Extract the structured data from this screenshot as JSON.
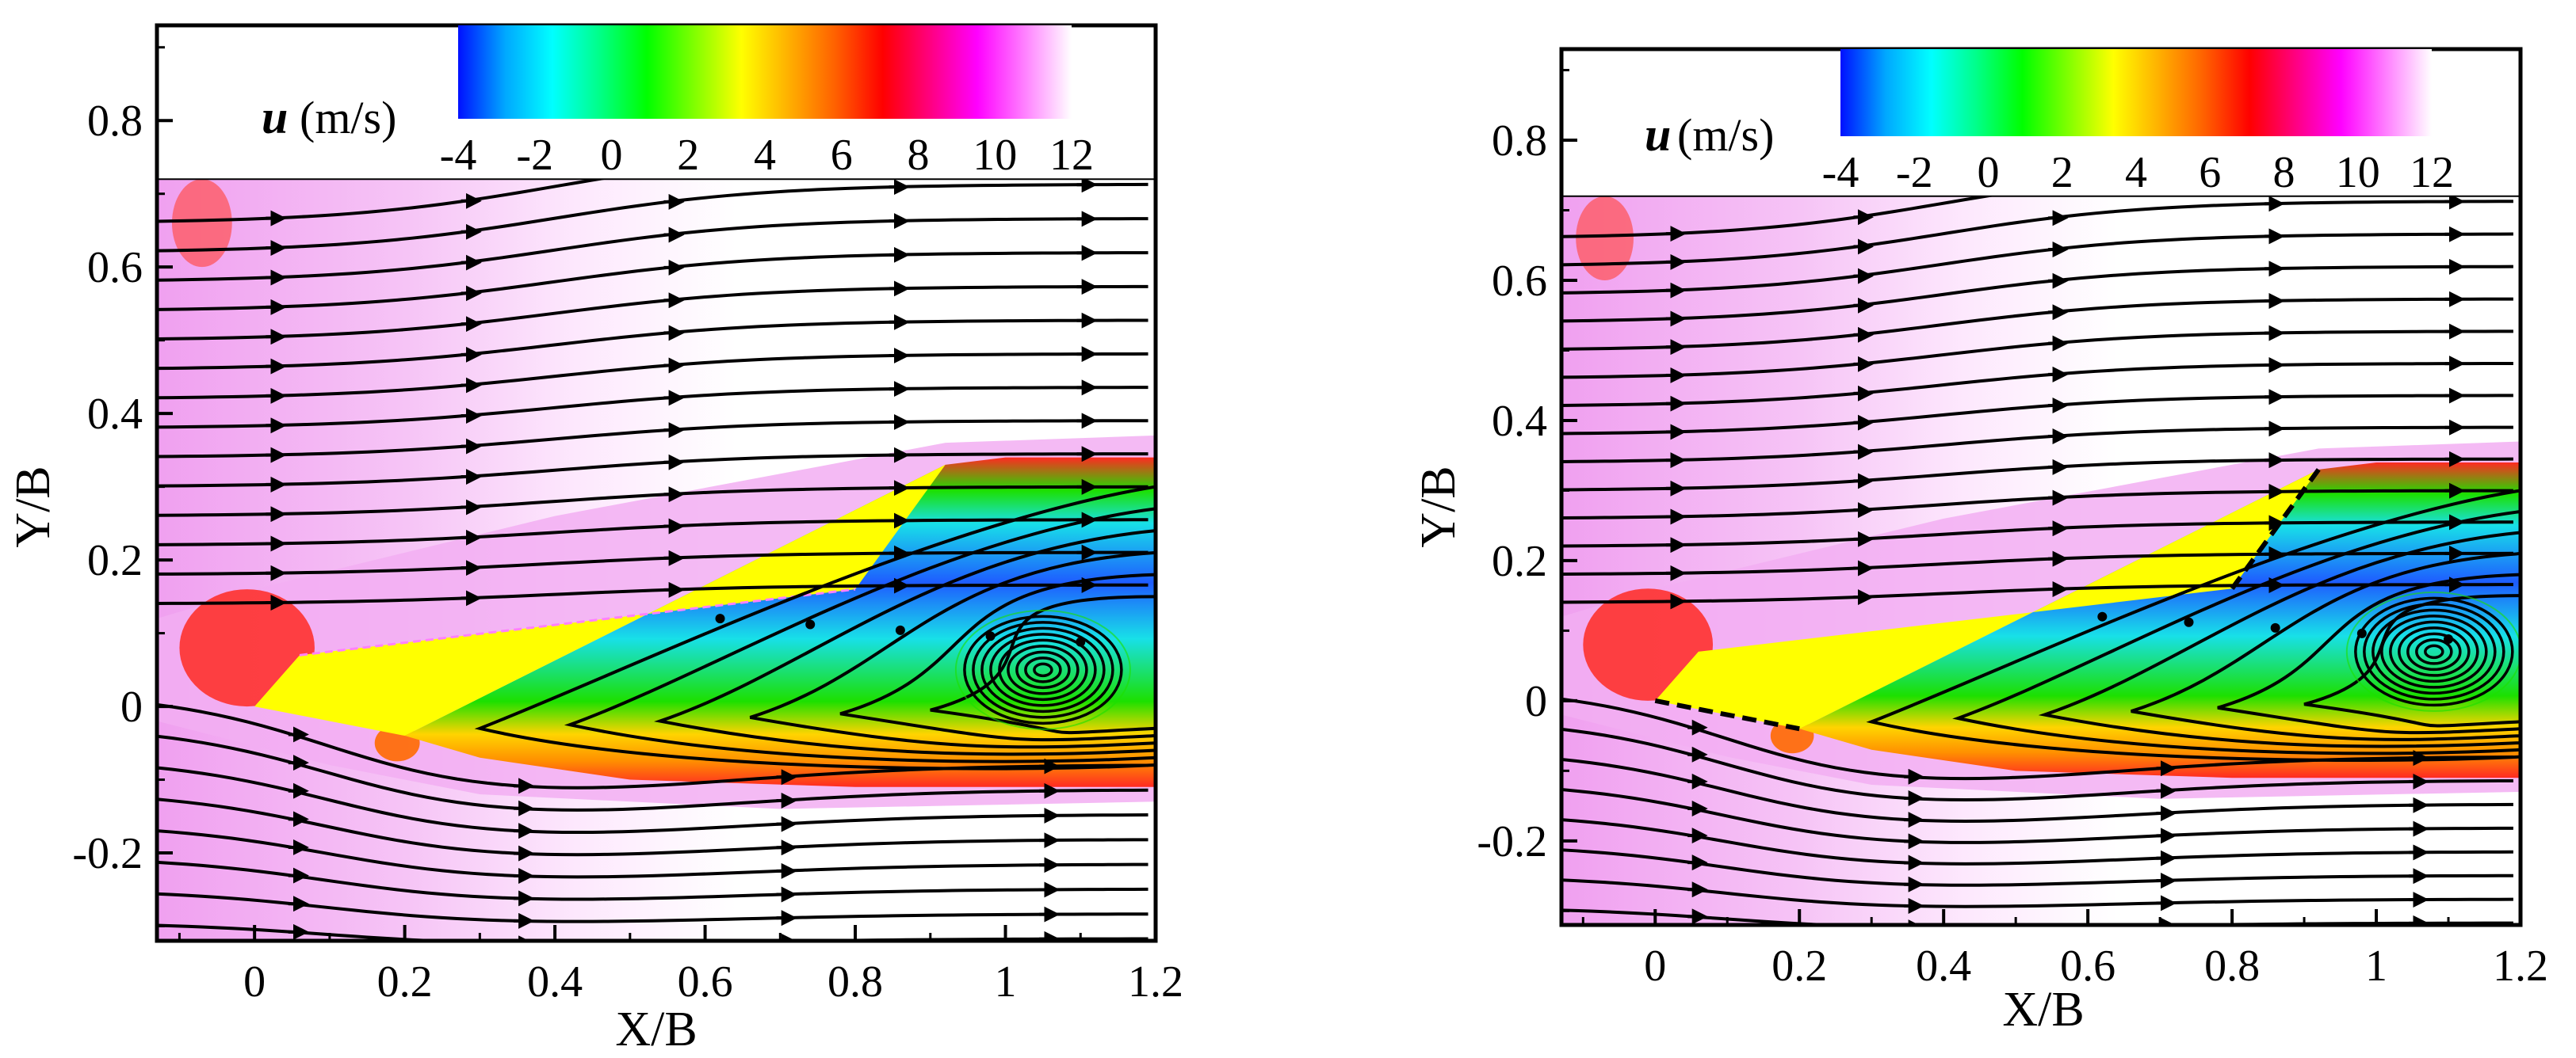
{
  "chart_data": [
    {
      "type": "heatmap",
      "panel": "left",
      "title": "",
      "xlabel": "X/B",
      "ylabel": "Y/B",
      "xlim": [
        -0.13,
        1.2
      ],
      "ylim": [
        -0.32,
        0.93
      ],
      "x_ticks": [
        "0",
        "0.2",
        "0.4",
        "0.6",
        "0.8",
        "1",
        "1.2"
      ],
      "x_tick_values": [
        0,
        0.2,
        0.4,
        0.6,
        0.8,
        1.0,
        1.2
      ],
      "y_ticks": [
        "-0.2",
        "0",
        "0.2",
        "0.4",
        "0.6",
        "0.8"
      ],
      "y_tick_values": [
        -0.2,
        0,
        0.2,
        0.4,
        0.6,
        0.8
      ],
      "colorbar": {
        "variable": "u",
        "unit": "(m/s)",
        "range": [
          -4,
          12
        ],
        "tick_values": [
          -4,
          -2,
          0,
          2,
          4,
          6,
          8,
          10,
          12
        ],
        "tick_labels": [
          "-4",
          "-2",
          "0",
          "2",
          "4",
          "6",
          "8",
          "10",
          "12"
        ]
      },
      "body_polygon": [
        [
          0,
          0
        ],
        [
          0.06,
          0.07
        ],
        [
          0.8,
          0.16
        ],
        [
          0.92,
          0.33
        ],
        [
          0.2,
          -0.04
        ]
      ],
      "vortex_center": [
        1.05,
        0.05
      ],
      "separation_line_style": "thin",
      "streamlines": "black with arrowheads",
      "domain_top": 0.72
    },
    {
      "type": "heatmap",
      "panel": "right",
      "title": "",
      "xlabel": "X/B",
      "ylabel": "Y/B",
      "xlim": [
        -0.13,
        1.2
      ],
      "ylim": [
        -0.32,
        0.93
      ],
      "x_ticks": [
        "0",
        "0.2",
        "0.4",
        "0.6",
        "0.8",
        "1",
        "1.2"
      ],
      "x_tick_values": [
        0,
        0.2,
        0.4,
        0.6,
        0.8,
        1.0,
        1.2
      ],
      "y_ticks": [
        "-0.2",
        "0",
        "0.2",
        "0.4",
        "0.6",
        "0.8"
      ],
      "y_tick_values": [
        -0.2,
        0,
        0.2,
        0.4,
        0.6,
        0.8
      ],
      "colorbar": {
        "variable": "u",
        "unit": "(m/s)",
        "range": [
          -4,
          12
        ],
        "tick_values": [
          -4,
          -2,
          0,
          2,
          4,
          6,
          8,
          10,
          12
        ],
        "tick_labels": [
          "-4",
          "-2",
          "0",
          "2",
          "4",
          "6",
          "8",
          "10",
          "12"
        ]
      },
      "body_polygon": [
        [
          0,
          0
        ],
        [
          0.06,
          0.07
        ],
        [
          0.8,
          0.16
        ],
        [
          0.92,
          0.33
        ],
        [
          0.2,
          -0.04
        ]
      ],
      "vortex_center": [
        1.08,
        0.07
      ],
      "separation_line_style": "dashed",
      "streamlines": "black with arrowheads",
      "domain_top": 0.72
    }
  ],
  "colors": {
    "freestream": "#f2aef2",
    "freestream_pale": "#fbe3fb",
    "body": "#ffff00",
    "stagnation": "#ff2a22",
    "wake_blue": "#1e5cff",
    "wake_cyan": "#18e0e8",
    "wake_green": "#1ce000",
    "wake_yellow": "#ffd400",
    "wake_orange": "#ff9000",
    "streamline": "#000000"
  },
  "colormap": [
    "#0010ff",
    "#00a8ff",
    "#00ffff",
    "#00ff88",
    "#00ff00",
    "#80ff00",
    "#ffff00",
    "#ffb000",
    "#ff6000",
    "#ff0000",
    "#ff0080",
    "#ff00ff",
    "#ff80ff",
    "#ffffff"
  ]
}
